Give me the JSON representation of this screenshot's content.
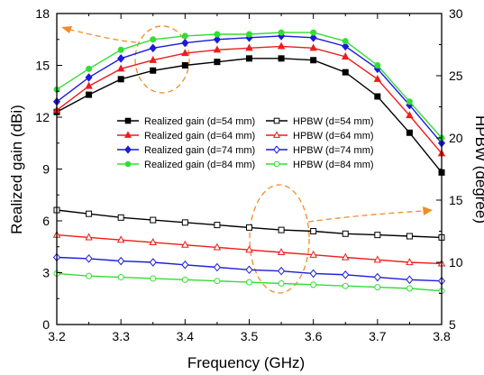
{
  "chart_data": {
    "type": "line",
    "xlabel": "Frequency (GHz)",
    "ylabel_left": "Realized gain (dBi)",
    "ylabel_right": "HPBW (degree)",
    "xlim": [
      3.2,
      3.8
    ],
    "ylim_left": [
      0,
      18
    ],
    "ylim_right": [
      5,
      30
    ],
    "x_ticks": [
      "3.2",
      "3.3",
      "3.4",
      "3.5",
      "3.6",
      "3.7",
      "3.8"
    ],
    "y_left_ticks": [
      "0",
      "3",
      "6",
      "9",
      "12",
      "15",
      "18"
    ],
    "y_right_ticks": [
      "5",
      "10",
      "15",
      "20",
      "25",
      "30"
    ],
    "grid": false,
    "legend_position": "center",
    "x": [
      3.2,
      3.25,
      3.3,
      3.35,
      3.4,
      3.45,
      3.5,
      3.55,
      3.6,
      3.65,
      3.7,
      3.75,
      3.8
    ],
    "series": [
      {
        "name": "Realized gain (d=54 mm)",
        "axis": "left",
        "color": "#000000",
        "marker": "square-filled",
        "values": [
          12.3,
          13.3,
          14.2,
          14.7,
          15.0,
          15.2,
          15.4,
          15.4,
          15.3,
          14.6,
          13.2,
          11.1,
          8.8
        ]
      },
      {
        "name": "Realized gain (d=64 mm)",
        "axis": "left",
        "color": "#ee1c1c",
        "marker": "triangle-filled",
        "values": [
          12.4,
          13.8,
          14.8,
          15.3,
          15.7,
          15.9,
          16.0,
          16.1,
          16.0,
          15.5,
          14.2,
          12.1,
          9.9
        ]
      },
      {
        "name": "Realized gain (d=74 mm)",
        "axis": "left",
        "color": "#1b1bdc",
        "marker": "diamond-filled",
        "values": [
          12.9,
          14.3,
          15.4,
          16.0,
          16.3,
          16.5,
          16.6,
          16.7,
          16.6,
          16.1,
          14.8,
          12.7,
          10.5
        ]
      },
      {
        "name": "Realized gain (d=84 mm)",
        "axis": "left",
        "color": "#33dd33",
        "marker": "circle-filled",
        "values": [
          13.6,
          14.8,
          15.9,
          16.5,
          16.7,
          16.8,
          16.8,
          16.9,
          16.9,
          16.4,
          15.0,
          12.9,
          10.8
        ]
      },
      {
        "name": "HPBW (d=54 mm)",
        "axis": "right",
        "color": "#000000",
        "marker": "square-open",
        "values": [
          14.2,
          13.9,
          13.6,
          13.4,
          13.2,
          13.0,
          12.8,
          12.6,
          12.5,
          12.3,
          12.2,
          12.1,
          12.0
        ]
      },
      {
        "name": "HPBW (d=64 mm)",
        "axis": "right",
        "color": "#ee1c1c",
        "marker": "triangle-open",
        "values": [
          12.2,
          12.0,
          11.8,
          11.6,
          11.4,
          11.2,
          11.0,
          10.8,
          10.6,
          10.4,
          10.2,
          10.0,
          9.9
        ]
      },
      {
        "name": "HPBW (d=74 mm)",
        "axis": "right",
        "color": "#1b1bdc",
        "marker": "diamond-open",
        "values": [
          10.4,
          10.3,
          10.1,
          10.0,
          9.8,
          9.6,
          9.4,
          9.3,
          9.1,
          9.0,
          8.8,
          8.6,
          8.5
        ]
      },
      {
        "name": "HPBW (d=84 mm)",
        "axis": "right",
        "color": "#33dd33",
        "marker": "circle-open",
        "values": [
          9.1,
          8.9,
          8.8,
          8.7,
          8.6,
          8.5,
          8.4,
          8.3,
          8.2,
          8.1,
          8.0,
          7.9,
          7.7
        ]
      }
    ],
    "annotations": [
      {
        "type": "dashed-ellipse",
        "color": "#f08c28",
        "around": "Realized gain curves",
        "arrow": "left"
      },
      {
        "type": "dashed-ellipse",
        "color": "#f08c28",
        "around": "HPBW curves",
        "arrow": "right"
      }
    ]
  }
}
